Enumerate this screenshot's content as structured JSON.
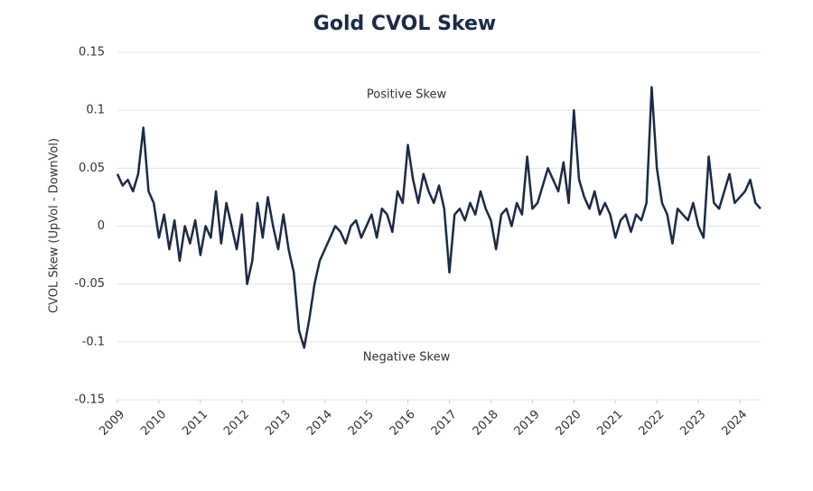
{
  "chart_data": {
    "type": "line",
    "title": "Gold CVOL Skew",
    "y_label": "CVOL Skew (UpVol - DownVol)",
    "annotations": [
      "Positive Skew",
      "Negative Skew"
    ],
    "x": [
      2009,
      2009.125,
      2009.25,
      2009.375,
      2009.5,
      2009.625,
      2009.75,
      2009.875,
      2010,
      2010.125,
      2010.25,
      2010.375,
      2010.5,
      2010.625,
      2010.75,
      2010.875,
      2011,
      2011.125,
      2011.25,
      2011.375,
      2011.5,
      2011.625,
      2011.75,
      2011.875,
      2012,
      2012.125,
      2012.25,
      2012.375,
      2012.5,
      2012.625,
      2012.75,
      2012.875,
      2013,
      2013.125,
      2013.25,
      2013.375,
      2013.5,
      2013.625,
      2013.75,
      2013.875,
      2014,
      2014.125,
      2014.25,
      2014.375,
      2014.5,
      2014.625,
      2014.75,
      2014.875,
      2015,
      2015.125,
      2015.25,
      2015.375,
      2015.5,
      2015.625,
      2015.75,
      2015.875,
      2016,
      2016.125,
      2016.25,
      2016.375,
      2016.5,
      2016.625,
      2016.75,
      2016.875,
      2017,
      2017.125,
      2017.25,
      2017.375,
      2017.5,
      2017.625,
      2017.75,
      2017.875,
      2018,
      2018.125,
      2018.25,
      2018.375,
      2018.5,
      2018.625,
      2018.75,
      2018.875,
      2019,
      2019.125,
      2019.25,
      2019.375,
      2019.5,
      2019.625,
      2019.75,
      2019.875,
      2020,
      2020.125,
      2020.25,
      2020.375,
      2020.5,
      2020.625,
      2020.75,
      2020.875,
      2021,
      2021.125,
      2021.25,
      2021.375,
      2021.5,
      2021.625,
      2021.75,
      2021.875,
      2022,
      2022.125,
      2022.25,
      2022.375,
      2022.5,
      2022.625,
      2022.75,
      2022.875,
      2023,
      2023.125,
      2023.25,
      2023.375,
      2023.5,
      2023.625,
      2023.75,
      2023.875,
      2024,
      2024.125,
      2024.25,
      2024.375,
      2024.5
    ],
    "series": [
      {
        "name": "Gold CVOL Skew",
        "color": "#1b2a47",
        "values": [
          0.045,
          0.035,
          0.04,
          0.03,
          0.045,
          0.085,
          0.03,
          0.02,
          -0.01,
          0.01,
          -0.02,
          0.005,
          -0.03,
          0,
          -0.015,
          0.005,
          -0.025,
          0,
          -0.01,
          0.03,
          -0.015,
          0.02,
          0,
          -0.02,
          0.01,
          -0.05,
          -0.03,
          0.02,
          -0.01,
          0.025,
          0,
          -0.02,
          0.01,
          -0.02,
          -0.04,
          -0.09,
          -0.105,
          -0.08,
          -0.05,
          -0.03,
          -0.02,
          -0.01,
          0,
          -0.005,
          -0.015,
          0,
          0.005,
          -0.01,
          0,
          0.01,
          -0.01,
          0.015,
          0.01,
          -0.005,
          0.03,
          0.02,
          0.07,
          0.04,
          0.02,
          0.045,
          0.03,
          0.02,
          0.035,
          0.015,
          -0.04,
          0.01,
          0.015,
          0.005,
          0.02,
          0.01,
          0.03,
          0.015,
          0.005,
          -0.02,
          0.01,
          0.015,
          0,
          0.02,
          0.01,
          0.06,
          0.015,
          0.02,
          0.035,
          0.05,
          0.04,
          0.03,
          0.055,
          0.02,
          0.1,
          0.04,
          0.025,
          0.015,
          0.03,
          0.01,
          0.02,
          0.01,
          -0.01,
          0.005,
          0.01,
          -0.005,
          0.01,
          0.005,
          0.02,
          0.12,
          0.05,
          0.02,
          0.01,
          -0.015,
          0.015,
          0.01,
          0.005,
          0.02,
          0,
          -0.01,
          0.06,
          0.02,
          0.015,
          0.03,
          0.045,
          0.02,
          0.025,
          0.03,
          0.04,
          0.02,
          0.015
        ]
      }
    ],
    "xlim": [
      2009,
      2024.5
    ],
    "xticks": [
      2009,
      2010,
      2011,
      2012,
      2013,
      2014,
      2015,
      2016,
      2017,
      2018,
      2019,
      2020,
      2021,
      2022,
      2023,
      2024
    ],
    "ylim": [
      -0.15,
      0.15
    ],
    "yticks": [
      0.15,
      0.1,
      0.05,
      0,
      -0.05,
      -0.1,
      -0.15
    ],
    "grid": true
  }
}
